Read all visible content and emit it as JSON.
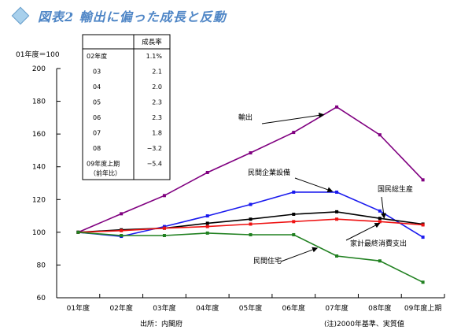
{
  "title": "図表2 輸出に偏った成長と反動",
  "unit_label": "01年度＝100",
  "source": "出所：内閣府",
  "note": "(注)2000年基準、実質値",
  "chart_data": {
    "type": "line",
    "categories": [
      "01年度",
      "02年度",
      "03年度",
      "04年度",
      "05年度",
      "06年度",
      "07年度",
      "08年度",
      "09年度上期"
    ],
    "ylim": [
      60,
      200
    ],
    "yticks": [
      60,
      80,
      100,
      120,
      140,
      160,
      180,
      200
    ],
    "grid": false,
    "series": [
      {
        "name": "輸出",
        "color": "#800080",
        "values": [
          100,
          111.3,
          122.4,
          136.5,
          148.5,
          161,
          176.5,
          159.5,
          132
        ]
      },
      {
        "name": "民間企業設備",
        "color": "#1a1aee",
        "values": [
          100,
          97.5,
          103.5,
          110,
          117,
          124.5,
          124.5,
          113,
          97
        ]
      },
      {
        "name": "国民総生産",
        "color": "#000000",
        "values": [
          100,
          101.5,
          102.5,
          105.5,
          108,
          111,
          112.5,
          108.5,
          105
        ]
      },
      {
        "name": "家計最終消費支出",
        "color": "#ee1111",
        "values": [
          100,
          101,
          102.5,
          103.5,
          105,
          106.5,
          108,
          106.5,
          104.5
        ]
      },
      {
        "name": "民間住宅",
        "color": "#208020",
        "values": [
          100,
          98,
          98,
          99.5,
          98.5,
          98.5,
          85.5,
          82.5,
          69.5
        ]
      }
    ],
    "annotations": [
      {
        "text": "輸出",
        "series": 0
      },
      {
        "text": "民間企業設備",
        "series": 1
      },
      {
        "text": "国民総生産",
        "series": 2
      },
      {
        "text": "家計最終消費支出",
        "series": 3
      },
      {
        "text": "民間住宅",
        "series": 4
      }
    ],
    "table": {
      "header": "成長率",
      "rows": [
        {
          "label": "02年度",
          "value": "1.1%"
        },
        {
          "label": "03",
          "value": "2.1"
        },
        {
          "label": "04",
          "value": "2.0"
        },
        {
          "label": "05",
          "value": "2.3"
        },
        {
          "label": "06",
          "value": "2.3"
        },
        {
          "label": "07",
          "value": "1.8"
        },
        {
          "label": "08",
          "value": "−3.2"
        },
        {
          "label": "09年度上期",
          "value": "−5.4"
        }
      ],
      "footnote": "（前年比）"
    }
  }
}
